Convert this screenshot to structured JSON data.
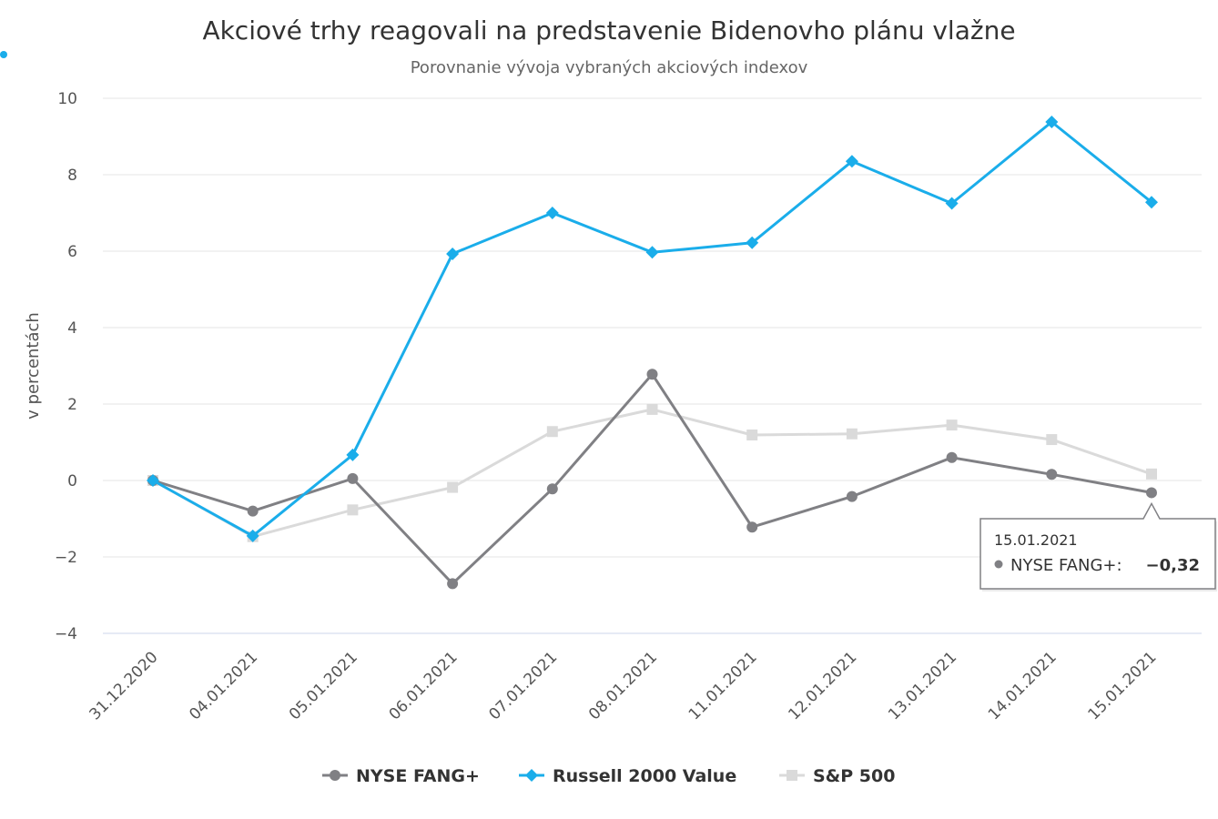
{
  "chart_data": {
    "type": "line",
    "title": "Akciové trhy reagovali na predstavenie Bidenovho plánu vlažne",
    "subtitle": "Porovnanie vývoja vybraných akciových indexov",
    "ylabel": "v percentách",
    "ylim": [
      -4,
      10
    ],
    "yticks": [
      10,
      8,
      6,
      4,
      2,
      0,
      -2,
      -4
    ],
    "ytick_labels": [
      "10",
      "8",
      "6",
      "4",
      "2",
      "0",
      "−2",
      "−4"
    ],
    "categories": [
      "31.12.2020",
      "04.01.2021",
      "05.01.2021",
      "06.01.2021",
      "07.01.2021",
      "08.01.2021",
      "11.01.2021",
      "12.01.2021",
      "13.01.2021",
      "14.01.2021",
      "15.01.2021"
    ],
    "grid": true,
    "legend_position": "bottom",
    "series": [
      {
        "name": "NYSE FANG+",
        "color": "#808084",
        "marker": "circle",
        "values": [
          0,
          -0.8,
          0.05,
          -2.7,
          -0.22,
          2.78,
          -1.22,
          -0.42,
          0.6,
          0.16,
          -0.32
        ]
      },
      {
        "name": "Russell 2000 Value",
        "color": "#1aadea",
        "marker": "diamond",
        "values": [
          0,
          -1.45,
          0.67,
          5.93,
          7.0,
          5.97,
          6.22,
          8.35,
          7.25,
          9.38,
          7.28
        ]
      },
      {
        "name": "S&P 500",
        "color": "#dadada",
        "marker": "square",
        "values": [
          0,
          -1.47,
          -0.77,
          -0.18,
          1.28,
          1.86,
          1.19,
          1.22,
          1.45,
          1.07,
          0.17
        ]
      }
    ],
    "tooltip": {
      "date": "15.01.2021",
      "series_label": "NYSE FANG+:",
      "value": "−0,32",
      "series_index": 0,
      "point_index": 10
    }
  }
}
